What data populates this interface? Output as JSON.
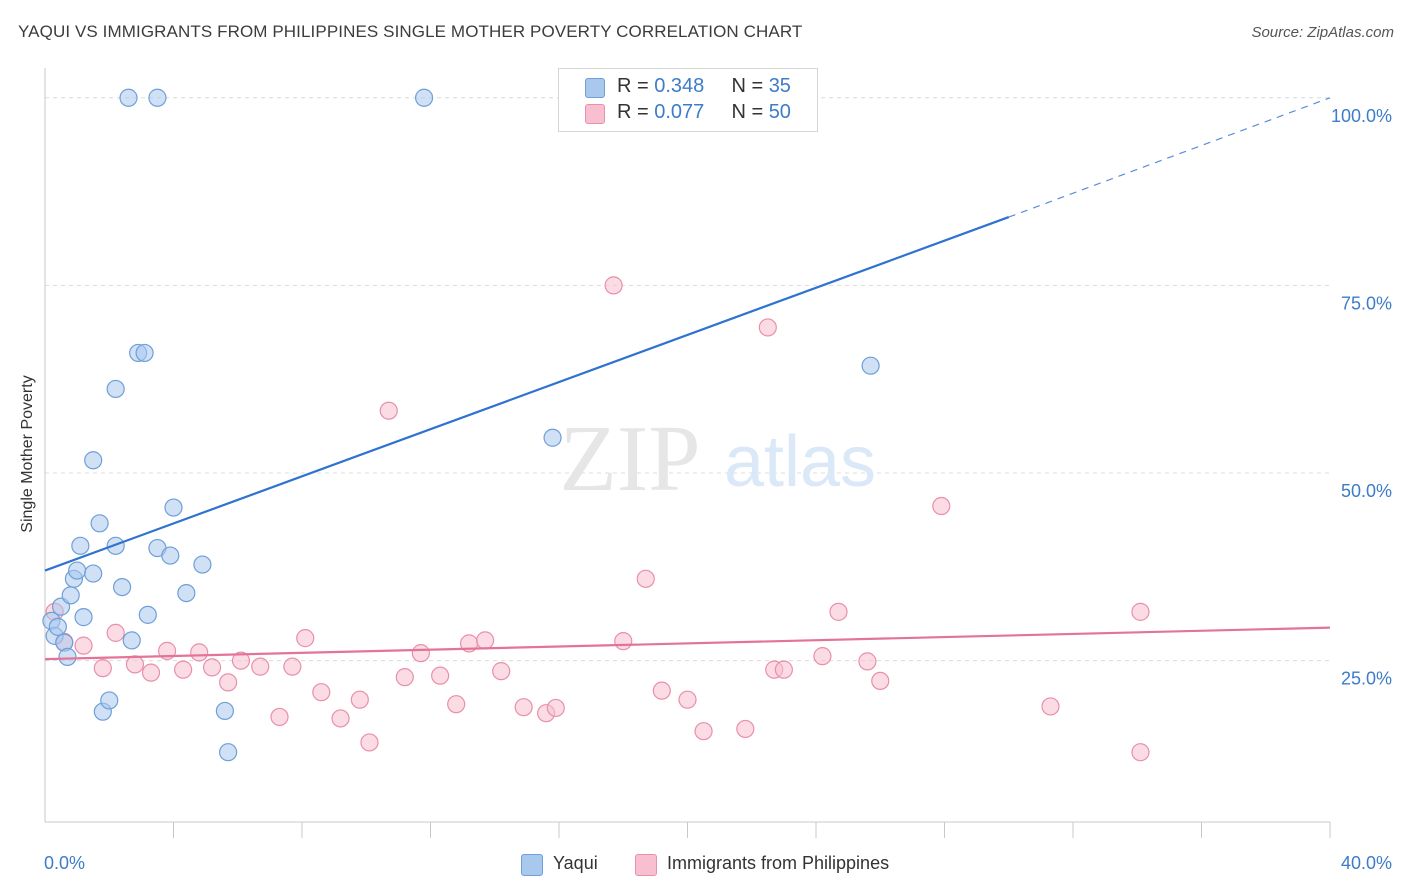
{
  "header": {
    "title": "YAQUI VS IMMIGRANTS FROM PHILIPPINES SINGLE MOTHER POVERTY CORRELATION CHART",
    "source": "Source: ZipAtlas.com"
  },
  "legend": {
    "rows": [
      {
        "r_label": "R = ",
        "r_value": "0.348",
        "n_label": "N = ",
        "n_value": "35",
        "color": "#a9c8ee",
        "border": "#6e9fd8"
      },
      {
        "r_label": "R = ",
        "r_value": "0.077",
        "n_label": "N = ",
        "n_value": "50",
        "color": "#f7bfd0",
        "border": "#e98fab"
      }
    ]
  },
  "bottom_legend": [
    {
      "label": "Yaqui",
      "color": "#a9c8ee",
      "border": "#6e9fd8"
    },
    {
      "label": "Immigrants from Philippines",
      "color": "#f7bfd0",
      "border": "#e98fab"
    }
  ],
  "watermark": {
    "zip": "ZIP",
    "atlas": "atlas"
  },
  "chart_data": {
    "type": "scatter",
    "title": "YAQUI VS IMMIGRANTS FROM PHILIPPINES SINGLE MOTHER POVERTY CORRELATION CHART",
    "xlabel": "",
    "ylabel": "Single Mother Poverty",
    "xlim": [
      0,
      40
    ],
    "ylim": [
      3.5,
      102.5
    ],
    "x_tick_labels": [
      "0.0%",
      "40.0%"
    ],
    "y_ticks": [
      25,
      50,
      75,
      100
    ],
    "y_tick_labels": [
      "25.0%",
      "50.0%",
      "75.0%",
      "100.0%"
    ],
    "grid": true,
    "colors": {
      "yaqui_fill": "#a9c8ee",
      "yaqui_edge": "#6e9fd8",
      "yaqui_line": "#2f72cf",
      "phil_fill": "#f7bfd0",
      "phil_edge": "#e98fab",
      "phil_line": "#e4739a",
      "tick_label": "#3d7cc9",
      "grid": "#dcdcdc"
    },
    "series": [
      {
        "name": "Yaqui",
        "points": [
          [
            0.2,
            30.3
          ],
          [
            0.3,
            28.3
          ],
          [
            0.4,
            29.5
          ],
          [
            0.5,
            32.2
          ],
          [
            0.6,
            27.4
          ],
          [
            0.7,
            25.5
          ],
          [
            0.8,
            33.7
          ],
          [
            0.9,
            35.9
          ],
          [
            1.0,
            37.0
          ],
          [
            1.1,
            40.3
          ],
          [
            1.2,
            30.8
          ],
          [
            1.5,
            36.6
          ],
          [
            1.5,
            51.7
          ],
          [
            1.7,
            43.3
          ],
          [
            1.8,
            18.2
          ],
          [
            2.0,
            19.7
          ],
          [
            2.2,
            61.2
          ],
          [
            2.2,
            40.3
          ],
          [
            2.4,
            34.8
          ],
          [
            2.6,
            100.0
          ],
          [
            2.7,
            27.7
          ],
          [
            2.9,
            66.0
          ],
          [
            3.1,
            66.0
          ],
          [
            3.2,
            31.1
          ],
          [
            3.5,
            100.0
          ],
          [
            3.5,
            40.0
          ],
          [
            3.9,
            39.0
          ],
          [
            4.0,
            45.4
          ],
          [
            4.4,
            34.0
          ],
          [
            4.9,
            37.8
          ],
          [
            5.6,
            18.3
          ],
          [
            5.7,
            12.8
          ],
          [
            11.8,
            100.0
          ],
          [
            15.8,
            54.7
          ],
          [
            25.7,
            64.3
          ]
        ],
        "trend": {
          "x": [
            0,
            30
          ],
          "y": [
            37.0,
            84.1
          ],
          "dashed_to": [
            40,
            100.0
          ]
        }
      },
      {
        "name": "Immigrants from Philippines",
        "points": [
          [
            0.3,
            31.5
          ],
          [
            0.6,
            27.5
          ],
          [
            1.2,
            27.0
          ],
          [
            1.8,
            24.0
          ],
          [
            2.2,
            28.7
          ],
          [
            2.8,
            24.5
          ],
          [
            3.3,
            23.4
          ],
          [
            3.8,
            26.3
          ],
          [
            4.3,
            23.8
          ],
          [
            4.8,
            26.1
          ],
          [
            5.2,
            24.1
          ],
          [
            5.7,
            22.1
          ],
          [
            6.1,
            25.0
          ],
          [
            6.7,
            24.2
          ],
          [
            7.3,
            17.5
          ],
          [
            7.7,
            24.2
          ],
          [
            8.1,
            28.0
          ],
          [
            8.6,
            20.8
          ],
          [
            9.2,
            17.3
          ],
          [
            9.8,
            19.8
          ],
          [
            10.1,
            14.1
          ],
          [
            10.7,
            58.3
          ],
          [
            11.2,
            22.8
          ],
          [
            11.7,
            26.0
          ],
          [
            12.3,
            23.0
          ],
          [
            12.8,
            19.2
          ],
          [
            13.2,
            27.3
          ],
          [
            13.7,
            27.7
          ],
          [
            14.2,
            23.6
          ],
          [
            14.9,
            18.8
          ],
          [
            15.6,
            18.0
          ],
          [
            15.9,
            18.7
          ],
          [
            17.7,
            75.0
          ],
          [
            18.0,
            27.6
          ],
          [
            18.7,
            35.9
          ],
          [
            19.2,
            21.0
          ],
          [
            20.0,
            19.8
          ],
          [
            20.5,
            15.6
          ],
          [
            21.8,
            15.9
          ],
          [
            22.5,
            69.4
          ],
          [
            22.7,
            23.8
          ],
          [
            23.0,
            23.8
          ],
          [
            24.2,
            25.6
          ],
          [
            24.7,
            31.5
          ],
          [
            25.6,
            24.9
          ],
          [
            26.0,
            22.3
          ],
          [
            27.9,
            45.6
          ],
          [
            31.3,
            18.9
          ],
          [
            34.1,
            31.5
          ],
          [
            34.1,
            12.8
          ]
        ],
        "trend": {
          "x": [
            0,
            40
          ],
          "y": [
            25.2,
            29.4
          ]
        }
      }
    ]
  }
}
